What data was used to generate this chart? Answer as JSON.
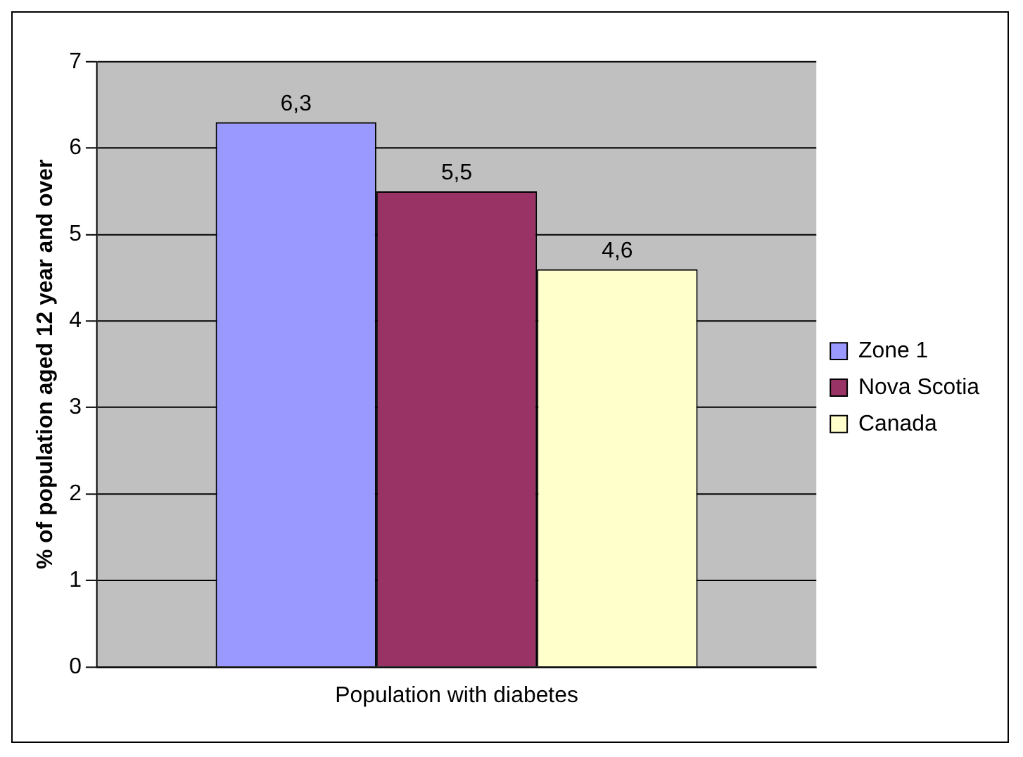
{
  "chart_data": {
    "type": "bar",
    "ylabel": "% of population aged 12 year and over",
    "categories": [
      "Population with diabetes"
    ],
    "series": [
      {
        "name": "Zone 1",
        "color": "#9999ff",
        "values": [
          6.3
        ],
        "value_labels": [
          "6,3"
        ]
      },
      {
        "name": "Nova Scotia",
        "color": "#993366",
        "values": [
          5.5
        ],
        "value_labels": [
          "5,5"
        ]
      },
      {
        "name": "Canada",
        "color": "#ffffcc",
        "values": [
          4.6
        ],
        "value_labels": [
          "4,6"
        ]
      }
    ],
    "ylim": [
      0,
      7
    ],
    "yticks": [
      0,
      1,
      2,
      3,
      4,
      5,
      6,
      7
    ],
    "grid": "y",
    "legend": "right"
  }
}
